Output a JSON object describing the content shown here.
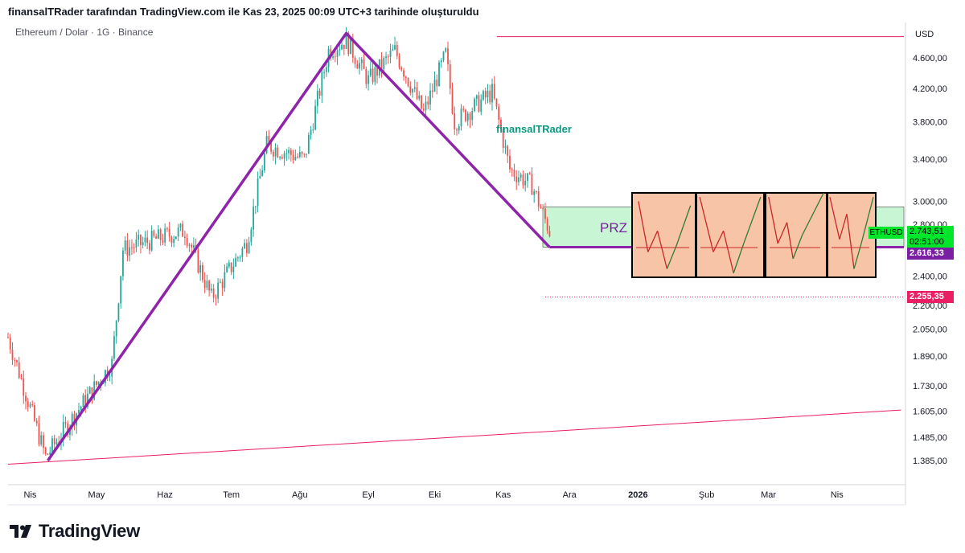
{
  "header": "finansalTRader tarafından TradingView.com ile Kas 23, 2025 00:09 UTC+3 tarihinde oluşturuldu",
  "symbol": "Ethereum / Dolar · 1G · Binance",
  "currency": "USD",
  "watermark": "finansalTRader",
  "prz_label": "PRZ",
  "brand": "TradingView",
  "price_labels": {
    "ticker": "ETHUSD",
    "current": "2.743,51",
    "countdown": "02:51:00",
    "level_purple": "2.616,33",
    "level_red": "2.255,35"
  },
  "chart_data": {
    "type": "candlestick",
    "title": "",
    "xlabel": "",
    "ylabel": "",
    "x_ticks": [
      "Nis",
      "May",
      "Haz",
      "Tem",
      "Ağu",
      "Eyl",
      "Eki",
      "Kas",
      "Ara",
      "2026",
      "Şub",
      "Mar",
      "Nis"
    ],
    "y_ticks": [
      "4.600,00",
      "4.200,00",
      "3.800,00",
      "3.400,00",
      "3.000,00",
      "2.800,00",
      "2.400,00",
      "2.200,00",
      "2.050,00",
      "1.890,00",
      "1.730,00",
      "1.605,00",
      "1.485,00",
      "1.385,00"
    ],
    "y_tick_values": [
      4600,
      4200,
      3800,
      3400,
      3000,
      2800,
      2400,
      2200,
      2050,
      1890,
      1730,
      1605,
      1485,
      1385
    ],
    "ylim": [
      1300,
      5000
    ],
    "scale": "log",
    "price_path": [
      {
        "date": "2025-03-22",
        "price": 2000
      },
      {
        "date": "2025-04-08",
        "price": 1400
      },
      {
        "date": "2025-04-22",
        "price": 1600
      },
      {
        "date": "2025-05-08",
        "price": 1850
      },
      {
        "date": "2025-05-13",
        "price": 2600
      },
      {
        "date": "2025-06-10",
        "price": 2750
      },
      {
        "date": "2025-06-22",
        "price": 2250
      },
      {
        "date": "2025-07-08",
        "price": 2650
      },
      {
        "date": "2025-07-17",
        "price": 3550
      },
      {
        "date": "2025-08-03",
        "price": 3400
      },
      {
        "date": "2025-08-14",
        "price": 4700
      },
      {
        "date": "2025-08-22",
        "price": 4850
      },
      {
        "date": "2025-09-01",
        "price": 4300
      },
      {
        "date": "2025-09-13",
        "price": 4700
      },
      {
        "date": "2025-09-26",
        "price": 3900
      },
      {
        "date": "2025-10-06",
        "price": 4650
      },
      {
        "date": "2025-10-10",
        "price": 3800
      },
      {
        "date": "2025-10-27",
        "price": 4150
      },
      {
        "date": "2025-11-04",
        "price": 3300
      },
      {
        "date": "2025-11-14",
        "price": 3150
      },
      {
        "date": "2025-11-22",
        "price": 2743.51
      }
    ],
    "pattern": [
      {
        "date": "2025-04-09",
        "price": 1385
      },
      {
        "date": "2025-08-22",
        "price": 4950
      },
      {
        "date": "2025-11-22",
        "price": 2616.33
      }
    ],
    "levels": {
      "resistance": 4900,
      "prz_top": 2950,
      "prz_bottom": 2616.33,
      "support": 2255.35
    },
    "trendline": [
      {
        "date": "2025-03-22",
        "price": 1370
      },
      {
        "date": "2026-04-30",
        "price": 1610
      }
    ],
    "colors": {
      "up": "#26a69a",
      "down": "#ef5350",
      "pattern": "#8e24aa",
      "trend": "#e91e63",
      "prz_fill": "#c8f5d3",
      "panel_fill": "#f8c4a8"
    }
  }
}
